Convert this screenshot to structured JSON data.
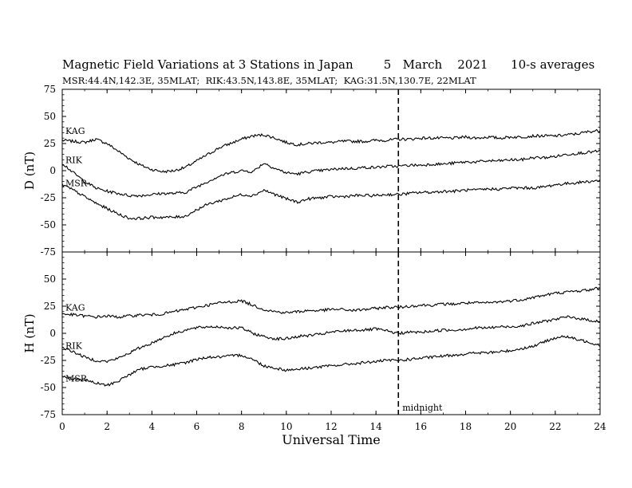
{
  "header": {
    "title": "Magnetic Field Variations at 3 Stations in Japan        5   March    2021      10-s averages",
    "subtitle": "MSR:44.4N,142.3E, 35MLAT;  RIK:43.5N,143.8E, 35MLAT;  KAG:31.5N,130.7E, 22MLAT"
  },
  "chart_data": [
    {
      "type": "line",
      "panel": "D",
      "ylabel": "D (nT)",
      "ylim": [
        -75,
        75
      ],
      "yticks": [
        -75,
        -50,
        -25,
        0,
        25,
        50,
        75
      ],
      "xlim": [
        0,
        24
      ],
      "xticks": [
        0,
        2,
        4,
        6,
        8,
        10,
        12,
        14,
        16,
        18,
        20,
        22,
        24
      ],
      "series": [
        {
          "name": "KAG",
          "x": [
            0,
            0.5,
            1,
            1.5,
            2,
            2.5,
            3,
            3.5,
            4,
            4.5,
            5,
            5.5,
            6,
            6.5,
            7,
            7.5,
            8,
            8.5,
            9,
            9.5,
            10,
            10.5,
            11,
            11.5,
            12,
            12.5,
            13,
            13.5,
            14,
            14.5,
            15,
            15.5,
            16,
            16.5,
            17,
            17.5,
            18,
            18.5,
            19,
            19.5,
            20,
            20.5,
            21,
            21.5,
            22,
            22.5,
            23,
            23.5,
            24
          ],
          "values": [
            28,
            27,
            26,
            29,
            25,
            18,
            11,
            5,
            1,
            -1,
            0,
            3,
            9,
            15,
            21,
            25,
            29,
            32,
            33,
            30,
            26,
            24,
            25,
            26,
            26,
            27,
            27,
            27,
            28,
            28,
            29,
            29,
            30,
            30,
            30,
            30,
            31,
            30,
            31,
            30,
            31,
            31,
            32,
            32,
            32,
            33,
            34,
            36,
            37
          ]
        },
        {
          "name": "RIK",
          "x": [
            0,
            0.5,
            1,
            1.5,
            2,
            2.5,
            3,
            3.5,
            4,
            4.5,
            5,
            5.5,
            6,
            6.5,
            7,
            7.5,
            8,
            8.5,
            9,
            9.5,
            10,
            10.5,
            11,
            11.5,
            12,
            12.5,
            13,
            13.5,
            14,
            14.5,
            15,
            15.5,
            16,
            16.5,
            17,
            17.5,
            18,
            18.5,
            19,
            19.5,
            20,
            20.5,
            21,
            21.5,
            22,
            22.5,
            23,
            23.5,
            24
          ],
          "values": [
            7,
            -2,
            -10,
            -16,
            -19,
            -21,
            -23,
            -23,
            -22,
            -21,
            -21,
            -20,
            -15,
            -10,
            -5,
            -2,
            0,
            -1,
            7,
            2,
            -2,
            -3,
            -1,
            0,
            1,
            2,
            2,
            3,
            3,
            4,
            4,
            5,
            5,
            6,
            6,
            7,
            8,
            8,
            9,
            9,
            10,
            10,
            12,
            12,
            13,
            15,
            16,
            17,
            18
          ]
        },
        {
          "name": "MSR",
          "x": [
            0,
            0.5,
            1,
            1.5,
            2,
            2.5,
            3,
            3.5,
            4,
            4.5,
            5,
            5.5,
            6,
            6.5,
            7,
            7.5,
            8,
            8.5,
            9,
            9.5,
            10,
            10.5,
            11,
            11.5,
            12,
            12.5,
            13,
            13.5,
            14,
            14.5,
            15,
            15.5,
            16,
            16.5,
            17,
            17.5,
            18,
            18.5,
            19,
            19.5,
            20,
            20.5,
            21,
            21.5,
            22,
            22.5,
            23,
            23.5,
            24
          ],
          "values": [
            -13,
            -18,
            -24,
            -30,
            -35,
            -40,
            -44,
            -44,
            -43,
            -43,
            -43,
            -42,
            -36,
            -31,
            -28,
            -25,
            -22,
            -23,
            -18,
            -22,
            -26,
            -29,
            -26,
            -25,
            -24,
            -24,
            -23,
            -23,
            -23,
            -22,
            -22,
            -21,
            -20,
            -20,
            -19,
            -19,
            -18,
            -18,
            -17,
            -17,
            -16,
            -16,
            -16,
            -15,
            -13,
            -12,
            -11,
            -10,
            -9
          ]
        }
      ]
    },
    {
      "type": "line",
      "panel": "H",
      "ylabel": "H (nT)",
      "xlabel": "Universal Time",
      "ylim": [
        -75,
        75
      ],
      "yticks": [
        -75,
        -50,
        -25,
        0,
        25,
        50,
        75
      ],
      "xlim": [
        0,
        24
      ],
      "xticks": [
        0,
        2,
        4,
        6,
        8,
        10,
        12,
        14,
        16,
        18,
        20,
        22,
        24
      ],
      "series": [
        {
          "name": "KAG",
          "x": [
            0,
            0.5,
            1,
            1.5,
            2,
            2.5,
            3,
            3.5,
            4,
            4.5,
            5,
            5.5,
            6,
            6.5,
            7,
            7.5,
            8,
            8.5,
            9,
            9.5,
            10,
            10.5,
            11,
            11.5,
            12,
            12.5,
            13,
            13.5,
            14,
            14.5,
            15,
            15.5,
            16,
            16.5,
            17,
            17.5,
            18,
            18.5,
            19,
            19.5,
            20,
            20.5,
            21,
            21.5,
            22,
            22.5,
            23,
            23.5,
            24
          ],
          "values": [
            18,
            17,
            16,
            15,
            16,
            15,
            16,
            17,
            17,
            18,
            20,
            22,
            24,
            26,
            28,
            29,
            30,
            26,
            22,
            20,
            19,
            20,
            21,
            21,
            22,
            22,
            21,
            22,
            23,
            24,
            24,
            25,
            26,
            26,
            27,
            27,
            28,
            28,
            28,
            29,
            30,
            31,
            33,
            35,
            37,
            38,
            39,
            40,
            42
          ]
        },
        {
          "name": "RIK",
          "x": [
            0,
            0.5,
            1,
            1.5,
            2,
            2.5,
            3,
            3.5,
            4,
            4.5,
            5,
            5.5,
            6,
            6.5,
            7,
            7.5,
            8,
            8.5,
            9,
            9.5,
            10,
            10.5,
            11,
            11.5,
            12,
            12.5,
            13,
            13.5,
            14,
            14.5,
            15,
            15.5,
            16,
            16.5,
            17,
            17.5,
            18,
            18.5,
            19,
            19.5,
            20,
            20.5,
            21,
            21.5,
            22,
            22.5,
            23,
            23.5,
            24
          ],
          "values": [
            -13,
            -17,
            -22,
            -25,
            -26,
            -23,
            -18,
            -13,
            -9,
            -4,
            0,
            3,
            5,
            6,
            6,
            5,
            5,
            0,
            -3,
            -5,
            -5,
            -3,
            -2,
            -1,
            1,
            2,
            3,
            3,
            4,
            2,
            0,
            1,
            1,
            2,
            3,
            3,
            4,
            5,
            5,
            6,
            6,
            7,
            9,
            11,
            13,
            15,
            14,
            12,
            11
          ]
        },
        {
          "name": "MSR",
          "x": [
            0,
            0.5,
            1,
            1.5,
            2,
            2.5,
            3,
            3.5,
            4,
            4.5,
            5,
            5.5,
            6,
            6.5,
            7,
            7.5,
            8,
            8.5,
            9,
            9.5,
            10,
            10.5,
            11,
            11.5,
            12,
            12.5,
            13,
            13.5,
            14,
            14.5,
            15,
            15.5,
            16,
            16.5,
            17,
            17.5,
            18,
            18.5,
            19,
            19.5,
            20,
            20.5,
            21,
            21.5,
            22,
            22.5,
            23,
            23.5,
            24
          ],
          "values": [
            -40,
            -42,
            -43,
            -46,
            -48,
            -44,
            -38,
            -33,
            -31,
            -30,
            -29,
            -27,
            -24,
            -22,
            -22,
            -21,
            -20,
            -24,
            -30,
            -32,
            -34,
            -33,
            -32,
            -31,
            -30,
            -29,
            -28,
            -27,
            -26,
            -25,
            -25,
            -24,
            -23,
            -22,
            -21,
            -20,
            -19,
            -18,
            -18,
            -17,
            -16,
            -14,
            -12,
            -8,
            -4,
            -3,
            -6,
            -8,
            -11
          ]
        }
      ]
    }
  ],
  "annotation": {
    "midnight_ut": 15,
    "label": "midnight"
  }
}
